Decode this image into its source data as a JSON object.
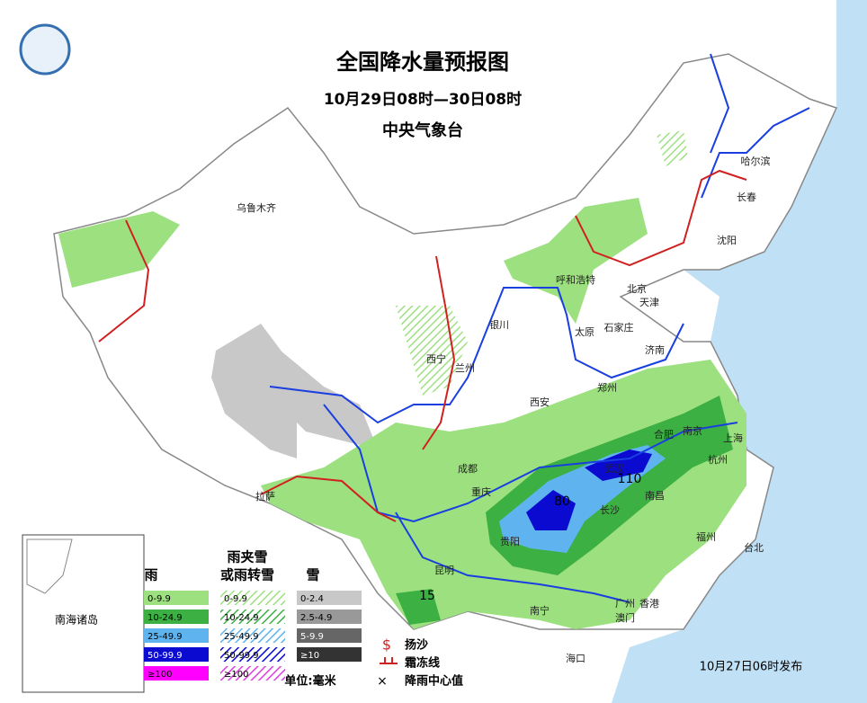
{
  "header": {
    "title": "全国降水量预报图",
    "period": "10月29日08时—30日08时",
    "issuer": "中央气象台"
  },
  "cities": [
    "乌鲁木齐",
    "哈尔滨",
    "长春",
    "沈阳",
    "呼和浩特",
    "北京",
    "天津",
    "石家庄",
    "太原",
    "银川",
    "西宁",
    "兰州",
    "济南",
    "郑州",
    "西安",
    "合肥",
    "南京",
    "上海",
    "杭州",
    "成都",
    "重庆",
    "武汉",
    "长沙",
    "南昌",
    "贵阳",
    "福州",
    "台北",
    "昆明",
    "南宁",
    "广州",
    "香港",
    "澳门",
    "海口",
    "拉萨"
  ],
  "centers": [
    80,
    110,
    15
  ],
  "legend": {
    "rain": {
      "title": "雨",
      "items": [
        "0-9.9",
        "10-24.9",
        "25-49.9",
        "50-99.9",
        "≥100"
      ]
    },
    "mixed": {
      "title": [
        "雨夹雪",
        "或雨转雪"
      ],
      "items": [
        "0-9.9",
        "10-24.9",
        "25-49.9",
        "50-99.9",
        "≥100"
      ]
    },
    "snow": {
      "title": "雪",
      "items": [
        "0-2.4",
        "2.5-4.9",
        "5-9.9",
        "≥10"
      ]
    },
    "symbols": [
      "扬沙",
      "霜冻线",
      "降雨中心值"
    ],
    "unit": "单位:毫米"
  },
  "inset_label": "南海诸岛",
  "issued": "10月27日06时发布"
}
